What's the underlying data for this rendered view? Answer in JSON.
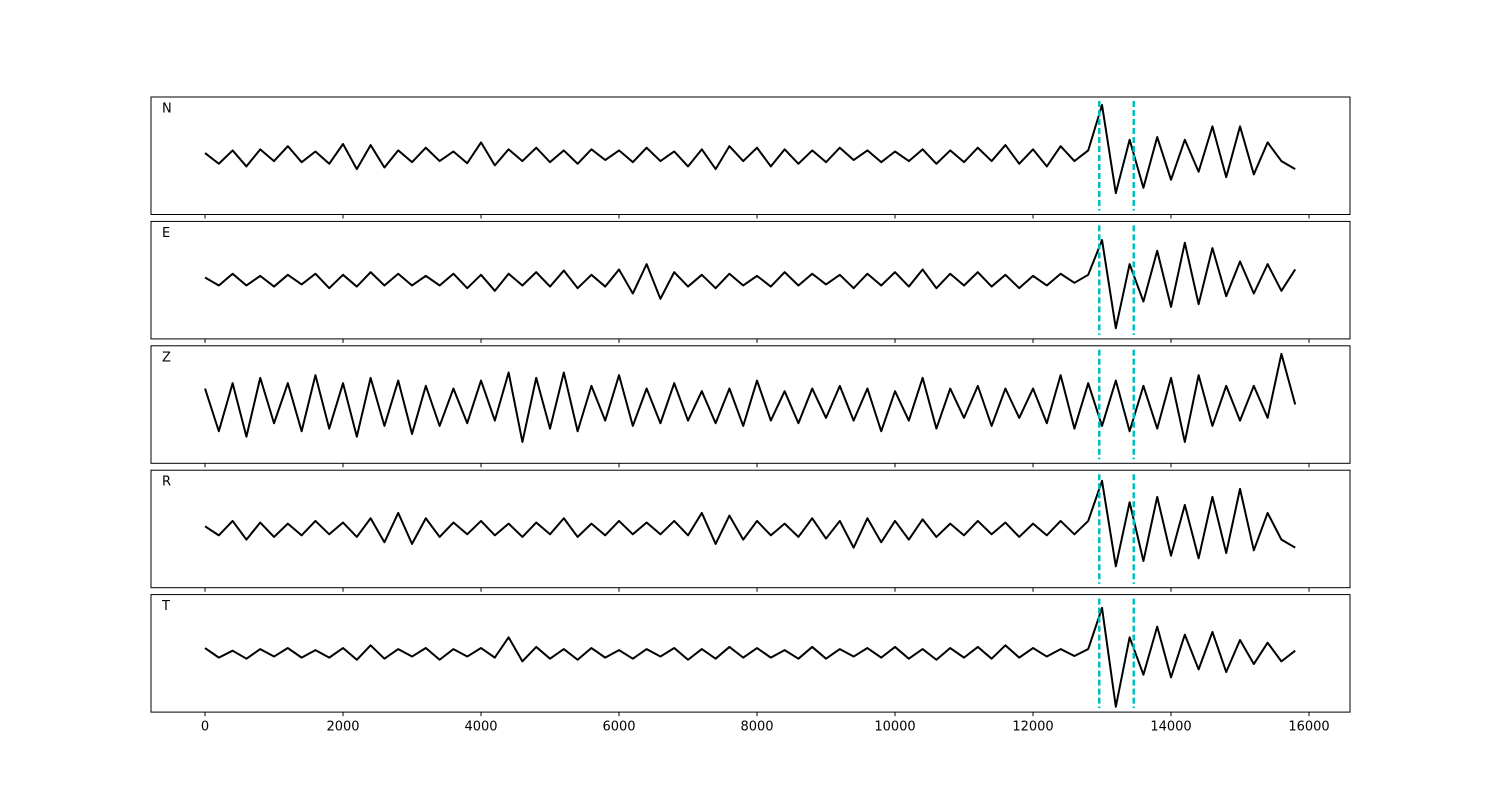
{
  "chart_data": {
    "type": "line",
    "layout": "stacked",
    "x": [
      0,
      200,
      400,
      600,
      800,
      1000,
      1200,
      1400,
      1600,
      1800,
      2000,
      2200,
      2400,
      2600,
      2800,
      3000,
      3200,
      3400,
      3600,
      3800,
      4000,
      4200,
      4400,
      4600,
      4800,
      5000,
      5200,
      5400,
      5600,
      5800,
      6000,
      6200,
      6400,
      6600,
      6800,
      7000,
      7200,
      7400,
      7600,
      7800,
      8000,
      8200,
      8400,
      8600,
      8800,
      9000,
      9200,
      9400,
      9600,
      9800,
      10000,
      10200,
      10400,
      10600,
      10800,
      11000,
      11200,
      11400,
      11600,
      11800,
      12000,
      12200,
      12400,
      12600,
      12800,
      13000,
      13200,
      13400,
      13600,
      13800,
      14000,
      14200,
      14400,
      14600,
      14800,
      15000,
      15200,
      15400,
      15600,
      15800
    ],
    "xlim": [
      -783,
      16594
    ],
    "xticks": [
      0,
      2000,
      4000,
      6000,
      8000,
      10000,
      12000,
      14000,
      16000
    ],
    "ylim": [
      -1.1,
      1.1
    ],
    "vlines": {
      "values": [
        12960,
        13460
      ],
      "color": "#00bfbf"
    },
    "series": [
      {
        "name": "N",
        "color": "#000000",
        "values": [
          0.05,
          -0.15,
          0.1,
          -0.2,
          0.12,
          -0.1,
          0.18,
          -0.12,
          0.08,
          -0.15,
          0.22,
          -0.25,
          0.2,
          -0.22,
          0.1,
          -0.12,
          0.15,
          -0.1,
          0.08,
          -0.14,
          0.25,
          -0.18,
          0.12,
          -0.1,
          0.15,
          -0.12,
          0.1,
          -0.15,
          0.12,
          -0.08,
          0.1,
          -0.12,
          0.15,
          -0.1,
          0.08,
          -0.2,
          0.12,
          -0.25,
          0.18,
          -0.1,
          0.15,
          -0.2,
          0.12,
          -0.15,
          0.1,
          -0.12,
          0.15,
          -0.08,
          0.1,
          -0.12,
          0.08,
          -0.1,
          0.12,
          -0.15,
          0.1,
          -0.12,
          0.15,
          -0.1,
          0.2,
          -0.15,
          0.12,
          -0.2,
          0.18,
          -0.1,
          0.1,
          0.95,
          -0.7,
          0.3,
          -0.6,
          0.35,
          -0.45,
          0.3,
          -0.3,
          0.55,
          -0.4,
          0.55,
          -0.35,
          0.25,
          -0.1,
          -0.25
        ]
      },
      {
        "name": "E",
        "color": "#000000",
        "values": [
          0.05,
          -0.1,
          0.12,
          -0.1,
          0.08,
          -0.12,
          0.1,
          -0.08,
          0.12,
          -0.15,
          0.1,
          -0.12,
          0.15,
          -0.1,
          0.12,
          -0.1,
          0.08,
          -0.1,
          0.12,
          -0.15,
          0.1,
          -0.2,
          0.12,
          -0.1,
          0.15,
          -0.12,
          0.18,
          -0.15,
          0.1,
          -0.12,
          0.2,
          -0.25,
          0.3,
          -0.35,
          0.15,
          -0.12,
          0.1,
          -0.15,
          0.12,
          -0.1,
          0.08,
          -0.12,
          0.15,
          -0.1,
          0.12,
          -0.08,
          0.1,
          -0.15,
          0.12,
          -0.1,
          0.15,
          -0.12,
          0.2,
          -0.15,
          0.12,
          -0.1,
          0.15,
          -0.12,
          0.1,
          -0.15,
          0.08,
          -0.1,
          0.12,
          -0.05,
          0.1,
          0.75,
          -0.9,
          0.3,
          -0.4,
          0.55,
          -0.5,
          0.7,
          -0.45,
          0.6,
          -0.3,
          0.35,
          -0.25,
          0.3,
          -0.2,
          0.2
        ]
      },
      {
        "name": "Z",
        "color": "#000000",
        "values": [
          0.3,
          -0.5,
          0.4,
          -0.6,
          0.5,
          -0.35,
          0.4,
          -0.5,
          0.55,
          -0.45,
          0.4,
          -0.6,
          0.5,
          -0.4,
          0.45,
          -0.55,
          0.35,
          -0.4,
          0.3,
          -0.35,
          0.45,
          -0.3,
          0.6,
          -0.7,
          0.5,
          -0.45,
          0.6,
          -0.5,
          0.35,
          -0.3,
          0.55,
          -0.4,
          0.3,
          -0.35,
          0.4,
          -0.3,
          0.25,
          -0.35,
          0.3,
          -0.4,
          0.45,
          -0.3,
          0.25,
          -0.35,
          0.3,
          -0.25,
          0.35,
          -0.3,
          0.3,
          -0.5,
          0.25,
          -0.3,
          0.5,
          -0.45,
          0.3,
          -0.25,
          0.35,
          -0.4,
          0.3,
          -0.25,
          0.3,
          -0.35,
          0.55,
          -0.45,
          0.4,
          -0.4,
          0.45,
          -0.5,
          0.35,
          -0.45,
          0.5,
          -0.7,
          0.55,
          -0.4,
          0.35,
          -0.3,
          0.35,
          -0.25,
          0.95,
          0.0
        ]
      },
      {
        "name": "R",
        "color": "#000000",
        "values": [
          0.05,
          -0.12,
          0.15,
          -0.2,
          0.12,
          -0.15,
          0.1,
          -0.12,
          0.15,
          -0.1,
          0.12,
          -0.15,
          0.2,
          -0.25,
          0.3,
          -0.28,
          0.2,
          -0.15,
          0.12,
          -0.1,
          0.15,
          -0.12,
          0.1,
          -0.15,
          0.12,
          -0.1,
          0.2,
          -0.15,
          0.1,
          -0.12,
          0.15,
          -0.1,
          0.12,
          -0.1,
          0.15,
          -0.12,
          0.3,
          -0.28,
          0.25,
          -0.2,
          0.15,
          -0.12,
          0.1,
          -0.15,
          0.2,
          -0.18,
          0.15,
          -0.35,
          0.2,
          -0.25,
          0.15,
          -0.2,
          0.18,
          -0.15,
          0.1,
          -0.12,
          0.15,
          -0.1,
          0.12,
          -0.15,
          0.1,
          -0.12,
          0.15,
          -0.1,
          0.15,
          0.9,
          -0.7,
          0.5,
          -0.6,
          0.6,
          -0.5,
          0.45,
          -0.55,
          0.6,
          -0.45,
          0.75,
          -0.4,
          0.3,
          -0.2,
          -0.35
        ]
      },
      {
        "name": "T",
        "color": "#000000",
        "values": [
          0.1,
          -0.08,
          0.05,
          -0.1,
          0.08,
          -0.06,
          0.1,
          -0.08,
          0.06,
          -0.08,
          0.1,
          -0.12,
          0.15,
          -0.1,
          0.08,
          -0.06,
          0.1,
          -0.12,
          0.08,
          -0.06,
          0.1,
          -0.08,
          0.3,
          -0.15,
          0.12,
          -0.1,
          0.08,
          -0.12,
          0.1,
          -0.08,
          0.06,
          -0.1,
          0.08,
          -0.06,
          0.1,
          -0.12,
          0.08,
          -0.1,
          0.12,
          -0.08,
          0.1,
          -0.08,
          0.06,
          -0.1,
          0.12,
          -0.1,
          0.08,
          -0.06,
          0.1,
          -0.08,
          0.12,
          -0.1,
          0.08,
          -0.12,
          0.1,
          -0.08,
          0.12,
          -0.1,
          0.15,
          -0.08,
          0.1,
          -0.06,
          0.08,
          -0.05,
          0.08,
          0.85,
          -1.0,
          0.3,
          -0.4,
          0.5,
          -0.45,
          0.35,
          -0.3,
          0.4,
          -0.35,
          0.25,
          -0.2,
          0.2,
          -0.15,
          0.05
        ]
      }
    ]
  }
}
